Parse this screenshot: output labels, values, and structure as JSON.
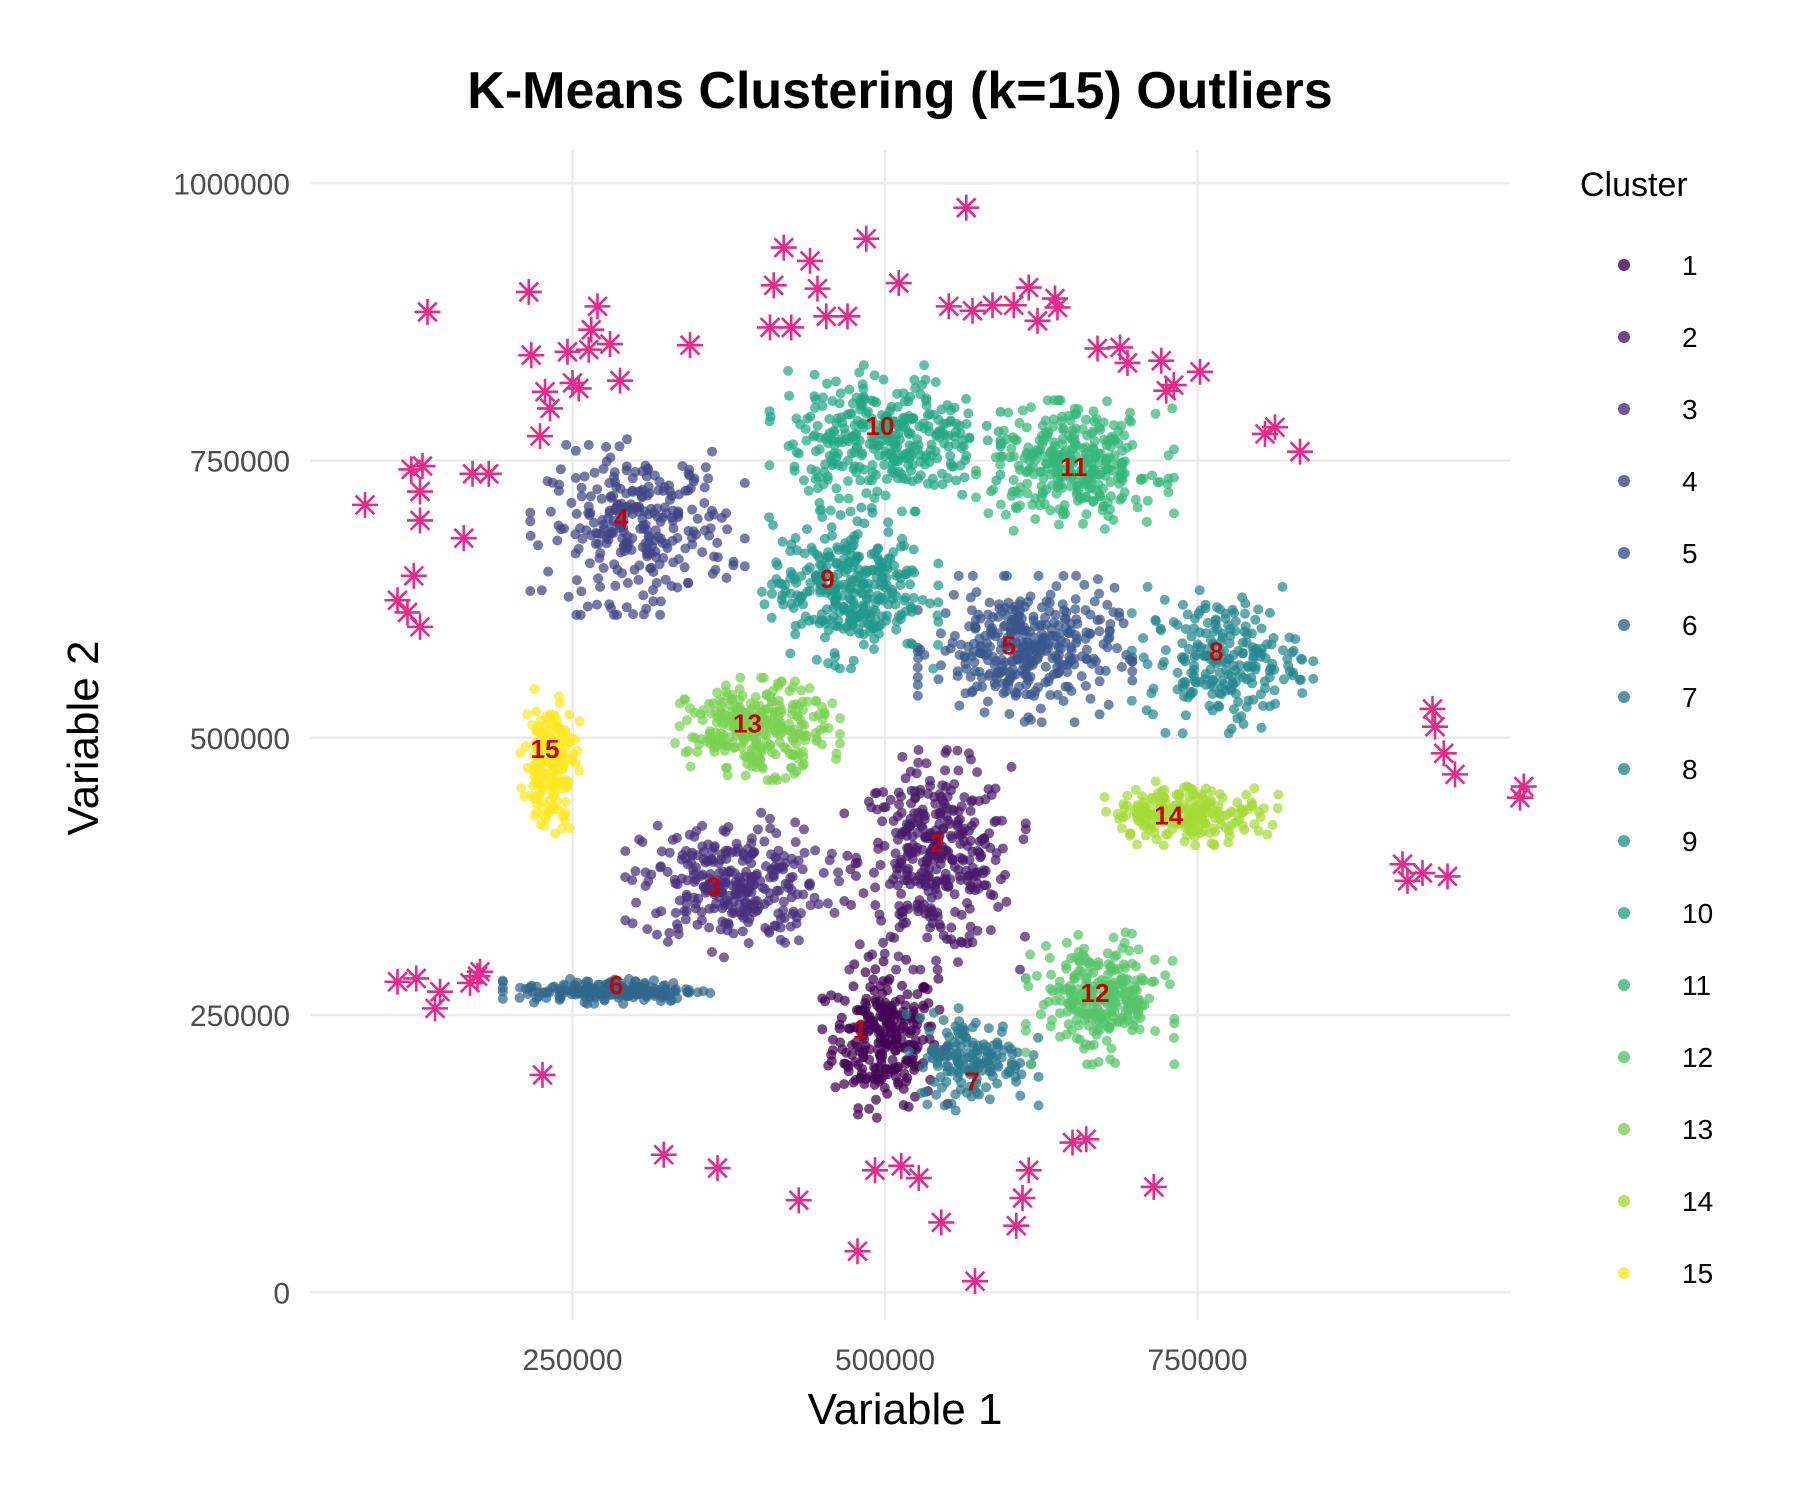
{
  "chart_data": {
    "type": "scatter",
    "title": "K-Means Clustering (k=15) Outliers",
    "xlabel": "Variable 1",
    "ylabel": "Variable 2",
    "xlim": [
      40000,
      1000000
    ],
    "ylim": [
      -25000,
      1030000
    ],
    "x_ticks": [
      250000,
      500000,
      750000
    ],
    "y_ticks": [
      0,
      250000,
      500000,
      750000,
      1000000
    ],
    "x_tick_labels": [
      "250000",
      "500000",
      "750000"
    ],
    "y_tick_labels": [
      "0",
      "250000",
      "500000",
      "750000",
      "1000000"
    ],
    "grid": true,
    "legend": {
      "title": "Cluster",
      "placement": "right",
      "labels": [
        "1",
        "2",
        "3",
        "4",
        "5",
        "6",
        "7",
        "8",
        "9",
        "10",
        "11",
        "12",
        "13",
        "14",
        "15"
      ]
    },
    "colors": [
      "#440154",
      "#481A6C",
      "#472F7D",
      "#414487",
      "#39568C",
      "#31688E",
      "#2A788E",
      "#23888E",
      "#1F988B",
      "#22A884",
      "#35B779",
      "#54C568",
      "#7AD151",
      "#A5DB36",
      "#FDE725"
    ],
    "outlier_color": "#E7298A",
    "label_color": "#CC0000",
    "clusters": [
      {
        "label": "1",
        "centroid": [
          500000,
          230000
        ],
        "spread": [
          38000,
          55000
        ],
        "n": 260
      },
      {
        "label": "2",
        "centroid": [
          540000,
          390000
        ],
        "spread": [
          55000,
          75000
        ],
        "n": 360
      },
      {
        "label": "3",
        "centroid": [
          378000,
          368000
        ],
        "spread": [
          65000,
          50000
        ],
        "n": 300
      },
      {
        "label": "4",
        "centroid": [
          302000,
          690000
        ],
        "spread": [
          65000,
          60000
        ],
        "n": 280
      },
      {
        "label": "5",
        "centroid": [
          612000,
          580000
        ],
        "spread": [
          65000,
          50000
        ],
        "n": 360
      },
      {
        "label": "6",
        "centroid": [
          280000,
          272000
        ],
        "spread": [
          65000,
          9000
        ],
        "n": 200
      },
      {
        "label": "7",
        "centroid": [
          570000,
          210000
        ],
        "spread": [
          40000,
          35000
        ],
        "n": 160
      },
      {
        "label": "8",
        "centroid": [
          770000,
          570000
        ],
        "spread": [
          55000,
          50000
        ],
        "n": 220
      },
      {
        "label": "9",
        "centroid": [
          470000,
          635000
        ],
        "spread": [
          55000,
          55000
        ],
        "n": 320
      },
      {
        "label": "10",
        "centroid": [
          500000,
          770000
        ],
        "spread": [
          70000,
          50000
        ],
        "n": 340
      },
      {
        "label": "11",
        "centroid": [
          652000,
          745000
        ],
        "spread": [
          60000,
          45000
        ],
        "n": 320
      },
      {
        "label": "12",
        "centroid": [
          672000,
          265000
        ],
        "spread": [
          45000,
          45000
        ],
        "n": 260
      },
      {
        "label": "13",
        "centroid": [
          398000,
          508000
        ],
        "spread": [
          50000,
          35000
        ],
        "n": 300
      },
      {
        "label": "14",
        "centroid": [
          742000,
          432000
        ],
        "spread": [
          55000,
          22000
        ],
        "n": 220
      },
      {
        "label": "15",
        "centroid": [
          232000,
          478000
        ],
        "spread": [
          18000,
          50000
        ],
        "n": 200
      }
    ],
    "centroid_labels": [
      {
        "text": "1",
        "x": 480000,
        "y": 237000
      },
      {
        "text": "2",
        "x": 542000,
        "y": 405000
      },
      {
        "text": "3",
        "x": 363000,
        "y": 366000
      },
      {
        "text": "4",
        "x": 289000,
        "y": 698000
      },
      {
        "text": "5",
        "x": 599000,
        "y": 583000
      },
      {
        "text": "6",
        "x": 285000,
        "y": 277000
      },
      {
        "text": "7",
        "x": 570000,
        "y": 190000
      },
      {
        "text": "8",
        "x": 765000,
        "y": 578000
      },
      {
        "text": "9",
        "x": 454000,
        "y": 643000
      },
      {
        "text": "10",
        "x": 496000,
        "y": 781000
      },
      {
        "text": "11",
        "x": 651000,
        "y": 744000
      },
      {
        "text": "12",
        "x": 668000,
        "y": 270000
      },
      {
        "text": "13",
        "x": 390000,
        "y": 513000
      },
      {
        "text": "14",
        "x": 727000,
        "y": 430000
      },
      {
        "text": "15",
        "x": 228000,
        "y": 490000
      }
    ],
    "outliers": [
      [
        84000,
        710000
      ],
      [
        121000,
        742000
      ],
      [
        130000,
        745000
      ],
      [
        128000,
        722000
      ],
      [
        128000,
        696000
      ],
      [
        123000,
        646000
      ],
      [
        110000,
        624000
      ],
      [
        118000,
        613000
      ],
      [
        128000,
        600000
      ],
      [
        163000,
        680000
      ],
      [
        170000,
        738000
      ],
      [
        183000,
        738000
      ],
      [
        134000,
        884000
      ],
      [
        215000,
        902000
      ],
      [
        217000,
        845000
      ],
      [
        228000,
        812000
      ],
      [
        232000,
        797000
      ],
      [
        224000,
        772000
      ],
      [
        246000,
        848000
      ],
      [
        250000,
        820000
      ],
      [
        255000,
        815000
      ],
      [
        263000,
        850000
      ],
      [
        265000,
        868000
      ],
      [
        270000,
        889000
      ],
      [
        280000,
        855000
      ],
      [
        288000,
        822000
      ],
      [
        344000,
        854000
      ],
      [
        408000,
        870000
      ],
      [
        411000,
        908000
      ],
      [
        419000,
        942000
      ],
      [
        425000,
        870000
      ],
      [
        440000,
        930000
      ],
      [
        446000,
        905000
      ],
      [
        453000,
        880000
      ],
      [
        470000,
        880000
      ],
      [
        485000,
        950000
      ],
      [
        511000,
        910000
      ],
      [
        565000,
        978000
      ],
      [
        551000,
        889000
      ],
      [
        570000,
        885000
      ],
      [
        586000,
        890000
      ],
      [
        603000,
        890000
      ],
      [
        615000,
        906000
      ],
      [
        622000,
        876000
      ],
      [
        636000,
        896000
      ],
      [
        638000,
        888000
      ],
      [
        670000,
        851000
      ],
      [
        688000,
        852000
      ],
      [
        694000,
        838000
      ],
      [
        721000,
        840000
      ],
      [
        725000,
        813000
      ],
      [
        731000,
        818000
      ],
      [
        752000,
        830000
      ],
      [
        804000,
        774000
      ],
      [
        812000,
        780000
      ],
      [
        832000,
        758000
      ],
      [
        938000,
        526000
      ],
      [
        940000,
        510000
      ],
      [
        947000,
        486000
      ],
      [
        956000,
        467000
      ],
      [
        1008000,
        446000
      ],
      [
        1011000,
        456000
      ],
      [
        914000,
        386000
      ],
      [
        918000,
        371000
      ],
      [
        930000,
        378000
      ],
      [
        950000,
        375000
      ],
      [
        110000,
        280000
      ],
      [
        125000,
        283000
      ],
      [
        140000,
        256000
      ],
      [
        144000,
        271000
      ],
      [
        168000,
        279000
      ],
      [
        174000,
        285000
      ],
      [
        176000,
        289000
      ],
      [
        226000,
        196000
      ],
      [
        323000,
        124000
      ],
      [
        366000,
        112000
      ],
      [
        431000,
        83000
      ],
      [
        478000,
        37000
      ],
      [
        492000,
        110000
      ],
      [
        513000,
        114000
      ],
      [
        527000,
        103000
      ],
      [
        545000,
        63000
      ],
      [
        572000,
        10000
      ],
      [
        605000,
        60000
      ],
      [
        610000,
        85000
      ],
      [
        615000,
        110000
      ],
      [
        650000,
        135000
      ],
      [
        661000,
        138000
      ],
      [
        715000,
        95000
      ]
    ]
  }
}
